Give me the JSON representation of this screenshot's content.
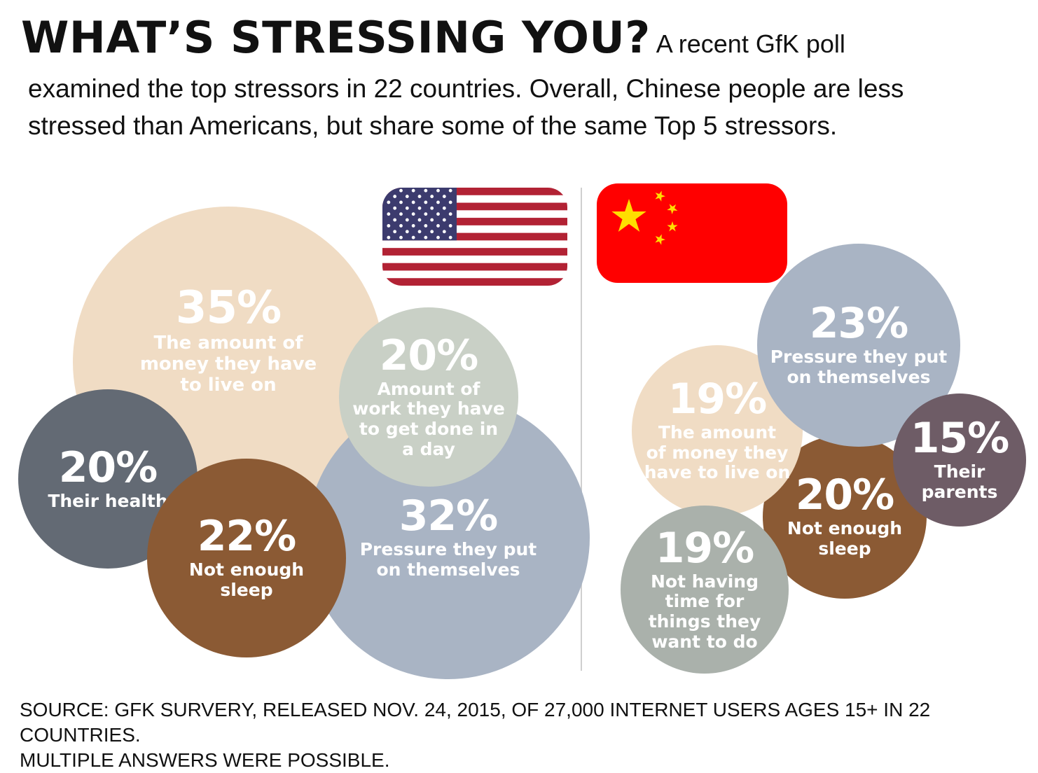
{
  "header": {
    "title": "WHAT’S STRESSING YOU?",
    "intro_line_1": "A recent GfK poll",
    "intro_line_2": "examined the top stressors in 22 countries. Overall, Chinese people are less",
    "intro_line_3": "stressed than Americans, but share some of the same Top 5 stressors."
  },
  "colors": {
    "money": "#f0dcc4",
    "work": "#c9d0c6",
    "health": "#636a74",
    "sleep": "#8b5a34",
    "pressure": "#a9b4c4",
    "parents": "#6e5c66",
    "free_time": "#aab1ab",
    "divider": "#cfcfcf",
    "flag_red": "#b22234",
    "flag_blue": "#3c3b6e",
    "china_red": "#ff0000",
    "china_star": "#ffde00"
  },
  "flags": {
    "left_icon": "us-flag-icon",
    "right_icon": "china-flag-icon"
  },
  "chart_data": [
    {
      "type": "bubble",
      "group": "United States",
      "units": "%",
      "items": [
        {
          "value": 35,
          "pct": "35%",
          "label": "The amount of money they have to live on",
          "lines": [
            "The amount of",
            "money they have",
            "to live on"
          ],
          "color": "#f0dcc4"
        },
        {
          "value": 32,
          "pct": "32%",
          "label": "Pressure they put on themselves",
          "lines": [
            "Pressure they put",
            "on themselves"
          ],
          "color": "#a9b4c4"
        },
        {
          "value": 22,
          "pct": "22%",
          "label": "Not enough sleep",
          "lines": [
            "Not enough",
            "sleep"
          ],
          "color": "#8b5a34"
        },
        {
          "value": 20,
          "pct": "20%",
          "label": "Amount of work they have to get done in a day",
          "lines": [
            "Amount of",
            "work they have",
            "to get done in",
            "a day"
          ],
          "color": "#c9d0c6"
        },
        {
          "value": 20,
          "pct": "20%",
          "label": "Their health",
          "lines": [
            "Their health"
          ],
          "color": "#636a74"
        }
      ]
    },
    {
      "type": "bubble",
      "group": "China",
      "units": "%",
      "items": [
        {
          "value": 23,
          "pct": "23%",
          "label": "Pressure they put on themselves",
          "lines": [
            "Pressure they put",
            "on themselves"
          ],
          "color": "#a9b4c4"
        },
        {
          "value": 20,
          "pct": "20%",
          "label": "Not enough sleep",
          "lines": [
            "Not enough",
            "sleep"
          ],
          "color": "#8b5a34"
        },
        {
          "value": 19,
          "pct": "19%",
          "label": "The amount of money they have to live on",
          "lines": [
            "The amount",
            "of money they",
            "have to live on"
          ],
          "color": "#f0dcc4"
        },
        {
          "value": 19,
          "pct": "19%",
          "label": "Not having time for things they want to do",
          "lines": [
            "Not having",
            "time for",
            "things they",
            "want to do"
          ],
          "color": "#aab1ab"
        },
        {
          "value": 15,
          "pct": "15%",
          "label": "Their parents",
          "lines": [
            "Their",
            "parents"
          ],
          "color": "#6e5c66"
        }
      ]
    }
  ],
  "footer": {
    "source_line_1": "SOURCE: GFK SURVERY, RELEASED NOV. 24, 2015, OF 27,000 INTERNET USERS AGES 15+ IN 22 COUNTRIES.",
    "source_line_2": "MULTIPLE ANSWERS WERE POSSIBLE."
  }
}
